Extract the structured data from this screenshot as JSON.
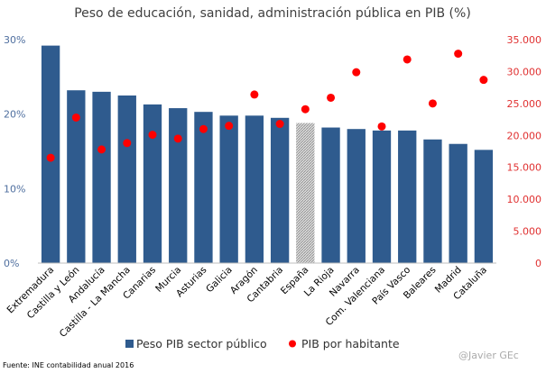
{
  "chart_data": {
    "type": "bar",
    "title": "Peso de educación, sanidad, administración pública en PIB (%)",
    "categories": [
      "Extremadura",
      "Castilla y León",
      "Andalucía",
      "Castilla - La Mancha",
      "Canarias",
      "Murcia",
      "Asturias",
      "Galicia",
      "Aragón",
      "Cantabria",
      "España",
      "La Rioja",
      "Navarra",
      "Com. Valenciana",
      "País Vasco",
      "Baleares",
      "Madrid",
      "Cataluña"
    ],
    "highlight_category": "España",
    "series": [
      {
        "name": "Peso PIB sector público",
        "type": "bar",
        "axis": "left",
        "color": "#2f5b8e",
        "values": [
          29.2,
          23.2,
          23.0,
          22.5,
          21.3,
          20.8,
          20.3,
          19.8,
          19.8,
          19.5,
          18.8,
          18.2,
          18.0,
          17.8,
          17.8,
          16.6,
          16.0,
          15.2
        ]
      },
      {
        "name": "PIB por habitante",
        "type": "scatter",
        "axis": "right",
        "color": "#ff0000",
        "values": [
          16500,
          22800,
          17800,
          18800,
          20100,
          19500,
          21000,
          21500,
          26400,
          21800,
          24100,
          25900,
          29900,
          21400,
          31900,
          25000,
          32800,
          28700
        ]
      }
    ],
    "y_left": {
      "min": 0,
      "max": 30,
      "ticks": [
        "0%",
        "10%",
        "20%",
        "30%"
      ],
      "tick_values": [
        0,
        10,
        20,
        30
      ]
    },
    "y_right": {
      "min": 0,
      "max": 35000,
      "ticks": [
        "0",
        "5.000",
        "10.000",
        "15.000",
        "20.000",
        "25.000",
        "30.000",
        "35.000"
      ],
      "tick_values": [
        0,
        5000,
        10000,
        15000,
        20000,
        25000,
        30000,
        35000
      ]
    },
    "legend": [
      "Peso PIB sector público",
      "PIB por habitante"
    ],
    "legend_position": "bottom",
    "grid": false
  },
  "footer": {
    "source": "Fuente: INE contabilidad anual 2016",
    "watermark": "@Javier GEc"
  }
}
